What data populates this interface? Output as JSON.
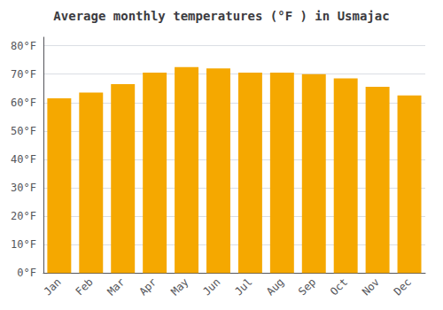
{
  "chart_data": {
    "type": "bar",
    "title": "Average monthly temperatures (°F ) in Usmajac",
    "categories": [
      "Jan",
      "Feb",
      "Mar",
      "Apr",
      "May",
      "Jun",
      "Jul",
      "Aug",
      "Sep",
      "Oct",
      "Nov",
      "Dec"
    ],
    "values": [
      61.5,
      63.5,
      66.5,
      70.5,
      72.5,
      72.0,
      70.5,
      70.5,
      70.0,
      68.5,
      65.5,
      62.5
    ],
    "color": "#F5A800",
    "ylim": [
      0,
      83
    ],
    "yticks": [
      {
        "value": 0,
        "label": "0°F"
      },
      {
        "value": 10,
        "label": "10°F"
      },
      {
        "value": 20,
        "label": "20°F"
      },
      {
        "value": 30,
        "label": "30°F"
      },
      {
        "value": 40,
        "label": "40°F"
      },
      {
        "value": 50,
        "label": "50°F"
      },
      {
        "value": 60,
        "label": "60°F"
      },
      {
        "value": 70,
        "label": "70°F"
      },
      {
        "value": 80,
        "label": "80°F"
      }
    ],
    "grid": true
  }
}
